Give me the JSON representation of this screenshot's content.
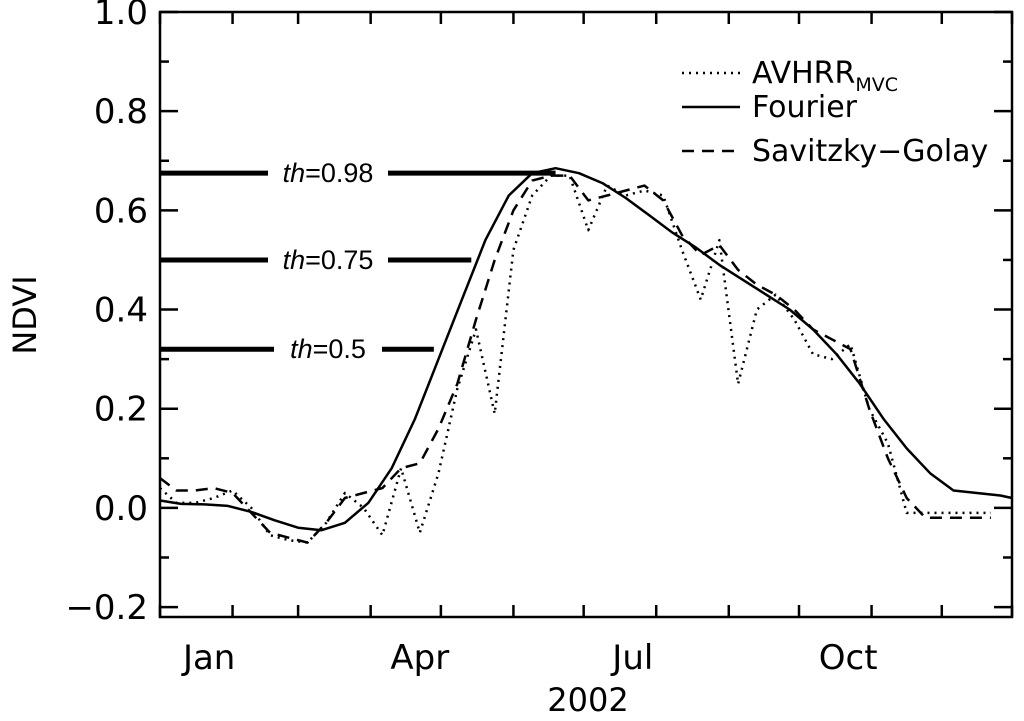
{
  "chart_data": {
    "type": "line",
    "title": "",
    "xlabel": "2002",
    "ylabel": "NDVI",
    "xlim": [
      1,
      365
    ],
    "ylim": [
      -0.22,
      1.0
    ],
    "yticks": [
      -0.2,
      0.0,
      0.2,
      0.4,
      0.6,
      0.8,
      1.0
    ],
    "ytick_labels": [
      "−0.2",
      "0.0",
      "0.2",
      "0.4",
      "0.6",
      "0.8",
      "1.0"
    ],
    "xtick_positions": [
      1,
      32,
      60,
      91,
      121,
      152,
      182,
      213,
      244,
      274,
      305,
      335,
      365
    ],
    "xtick_labels": [
      {
        "day": 22,
        "label": "Jan"
      },
      {
        "day": 112,
        "label": "Apr"
      },
      {
        "day": 203,
        "label": "Jul"
      },
      {
        "day": 295,
        "label": "Oct"
      }
    ],
    "legend_position": "top-right",
    "series": [
      {
        "name": "AVHRR",
        "name_sub": "MVC",
        "style": "dotted",
        "x": [
          1,
          8,
          16,
          24,
          32,
          40,
          48,
          56,
          64,
          72,
          80,
          88,
          96,
          104,
          112,
          120,
          128,
          136,
          144,
          152,
          160,
          168,
          176,
          184,
          192,
          200,
          208,
          216,
          224,
          232,
          240,
          248,
          256,
          264,
          272,
          280,
          288,
          296,
          304,
          312,
          320,
          328,
          336,
          344,
          352,
          356
        ],
        "y": [
          0.04,
          0.01,
          0.01,
          0.02,
          0.035,
          0.0,
          -0.055,
          -0.065,
          -0.07,
          -0.03,
          0.03,
          0.0,
          -0.055,
          0.08,
          -0.05,
          0.07,
          0.24,
          0.36,
          0.19,
          0.52,
          0.63,
          0.67,
          0.67,
          0.56,
          0.65,
          0.63,
          0.64,
          0.63,
          0.52,
          0.42,
          0.54,
          0.25,
          0.4,
          0.43,
          0.38,
          0.31,
          0.3,
          0.33,
          0.2,
          0.13,
          -0.01,
          -0.01,
          -0.01,
          -0.01,
          -0.01,
          -0.01
        ]
      },
      {
        "name": "Fourier",
        "style": "solid",
        "x": [
          1,
          10,
          20,
          30,
          40,
          50,
          60,
          70,
          80,
          90,
          100,
          110,
          120,
          130,
          140,
          150,
          160,
          170,
          180,
          190,
          200,
          210,
          220,
          230,
          240,
          250,
          260,
          270,
          280,
          290,
          300,
          310,
          320,
          330,
          340,
          350,
          360,
          365
        ],
        "y": [
          0.015,
          0.008,
          0.007,
          0.004,
          -0.008,
          -0.025,
          -0.04,
          -0.045,
          -0.03,
          0.01,
          0.08,
          0.18,
          0.3,
          0.42,
          0.54,
          0.63,
          0.675,
          0.685,
          0.675,
          0.655,
          0.625,
          0.59,
          0.555,
          0.525,
          0.49,
          0.46,
          0.43,
          0.4,
          0.36,
          0.31,
          0.25,
          0.18,
          0.12,
          0.07,
          0.035,
          0.03,
          0.025,
          0.02
        ]
      },
      {
        "name": "Savitzky−Golay",
        "style": "dashed",
        "x": [
          1,
          8,
          16,
          24,
          32,
          40,
          48,
          56,
          64,
          72,
          80,
          88,
          96,
          104,
          112,
          120,
          128,
          136,
          144,
          152,
          160,
          168,
          176,
          184,
          192,
          200,
          208,
          216,
          224,
          232,
          240,
          248,
          256,
          264,
          272,
          280,
          288,
          296,
          304,
          312,
          320,
          328,
          336,
          344,
          352,
          356
        ],
        "y": [
          0.06,
          0.035,
          0.035,
          0.04,
          0.03,
          -0.01,
          -0.05,
          -0.06,
          -0.07,
          -0.03,
          0.02,
          0.03,
          0.04,
          0.08,
          0.09,
          0.16,
          0.25,
          0.38,
          0.5,
          0.6,
          0.66,
          0.67,
          0.67,
          0.62,
          0.63,
          0.64,
          0.65,
          0.62,
          0.55,
          0.51,
          0.53,
          0.48,
          0.45,
          0.43,
          0.4,
          0.36,
          0.34,
          0.32,
          0.2,
          0.1,
          0.02,
          -0.02,
          -0.02,
          -0.02,
          -0.02,
          -0.02
        ]
      }
    ],
    "thresholds": [
      {
        "label_italic": "th",
        "label_value": "=0.98",
        "y": 0.675,
        "x_end": 170
      },
      {
        "label_italic": "th",
        "label_value": "=0.75",
        "y": 0.5,
        "x_end": 134
      },
      {
        "label_italic": "th",
        "label_value": "=0.5",
        "y": 0.32,
        "x_end": 118
      }
    ]
  }
}
